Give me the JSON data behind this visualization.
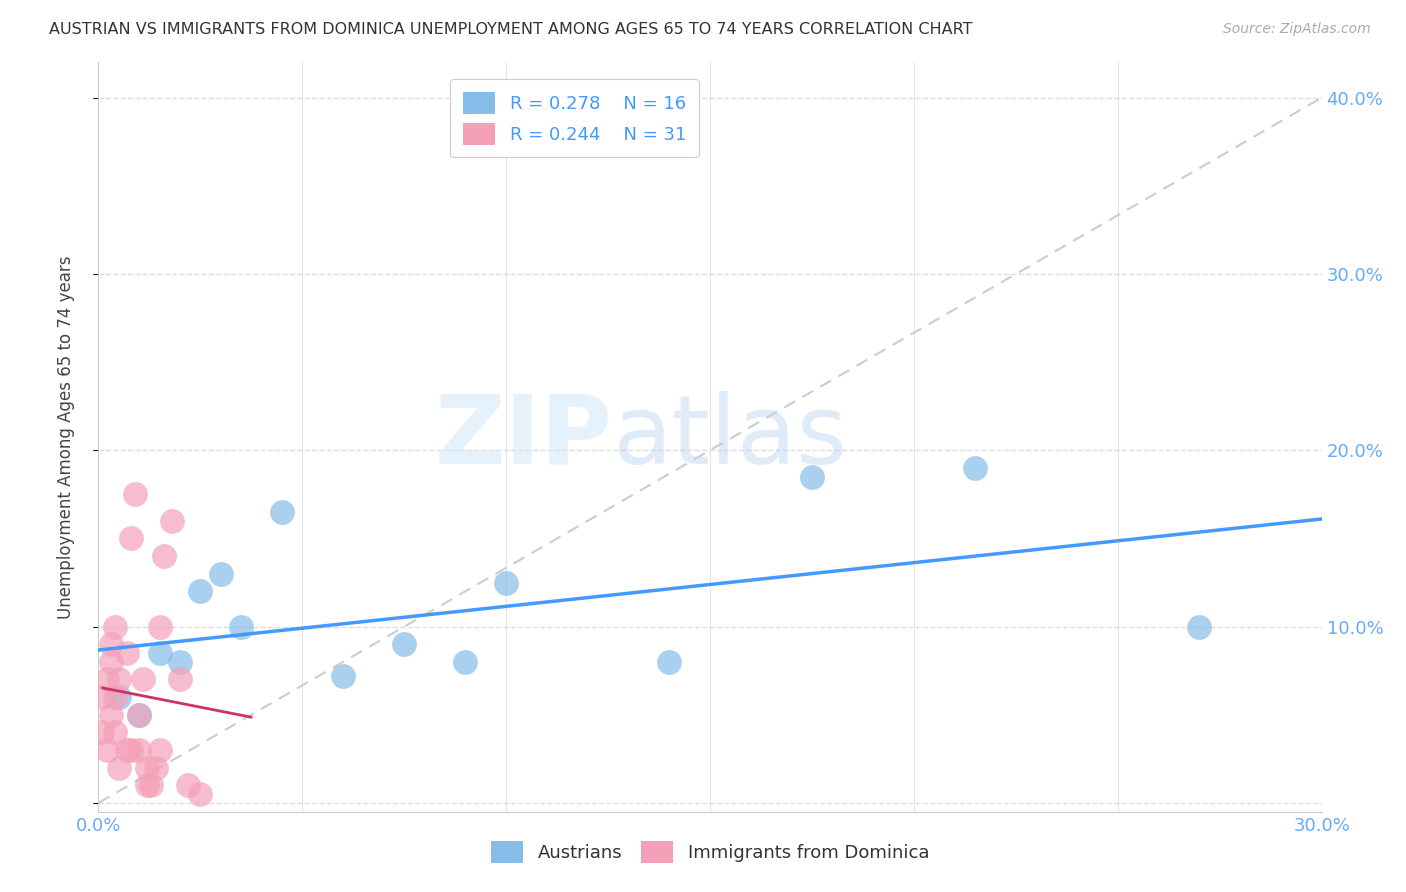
{
  "title": "AUSTRIAN VS IMMIGRANTS FROM DOMINICA UNEMPLOYMENT AMONG AGES 65 TO 74 YEARS CORRELATION CHART",
  "source": "Source: ZipAtlas.com",
  "ylabel": "Unemployment Among Ages 65 to 74 years",
  "xlim": [
    0.0,
    0.3
  ],
  "ylim": [
    -0.005,
    0.42
  ],
  "y_ticks": [
    0.0,
    0.1,
    0.2,
    0.3,
    0.4
  ],
  "austrians_R": "0.278",
  "austrians_N": "16",
  "dominica_R": "0.244",
  "dominica_N": "31",
  "blue_color": "#85bce8",
  "pink_color": "#f4a0b8",
  "blue_line_color": "#4499ff",
  "pink_line_color": "#cc3366",
  "diagonal_color": "#cccccc",
  "legend_color": "#4499ff",
  "austrians_x": [
    0.005,
    0.01,
    0.015,
    0.02,
    0.025,
    0.03,
    0.035,
    0.045,
    0.06,
    0.075,
    0.09,
    0.1,
    0.14,
    0.175,
    0.215,
    0.27
  ],
  "austrians_y": [
    0.06,
    0.05,
    0.085,
    0.08,
    0.12,
    0.13,
    0.1,
    0.165,
    0.072,
    0.09,
    0.08,
    0.125,
    0.08,
    0.185,
    0.19,
    0.1
  ],
  "dominica_x": [
    0.001,
    0.001,
    0.002,
    0.002,
    0.003,
    0.003,
    0.003,
    0.004,
    0.004,
    0.004,
    0.005,
    0.005,
    0.007,
    0.007,
    0.008,
    0.008,
    0.009,
    0.01,
    0.01,
    0.011,
    0.012,
    0.012,
    0.013,
    0.014,
    0.015,
    0.015,
    0.016,
    0.018,
    0.02,
    0.022,
    0.025
  ],
  "dominica_y": [
    0.04,
    0.06,
    0.03,
    0.07,
    0.08,
    0.09,
    0.05,
    0.1,
    0.06,
    0.04,
    0.07,
    0.02,
    0.03,
    0.085,
    0.03,
    0.15,
    0.175,
    0.03,
    0.05,
    0.07,
    0.01,
    0.02,
    0.01,
    0.02,
    0.03,
    0.1,
    0.14,
    0.16,
    0.07,
    0.01,
    0.005
  ],
  "watermark_zip": "ZIP",
  "watermark_atlas": "atlas",
  "background_color": "#ffffff",
  "grid_color": "#dddddd",
  "tick_color": "#66aaff",
  "spine_color": "#cccccc"
}
